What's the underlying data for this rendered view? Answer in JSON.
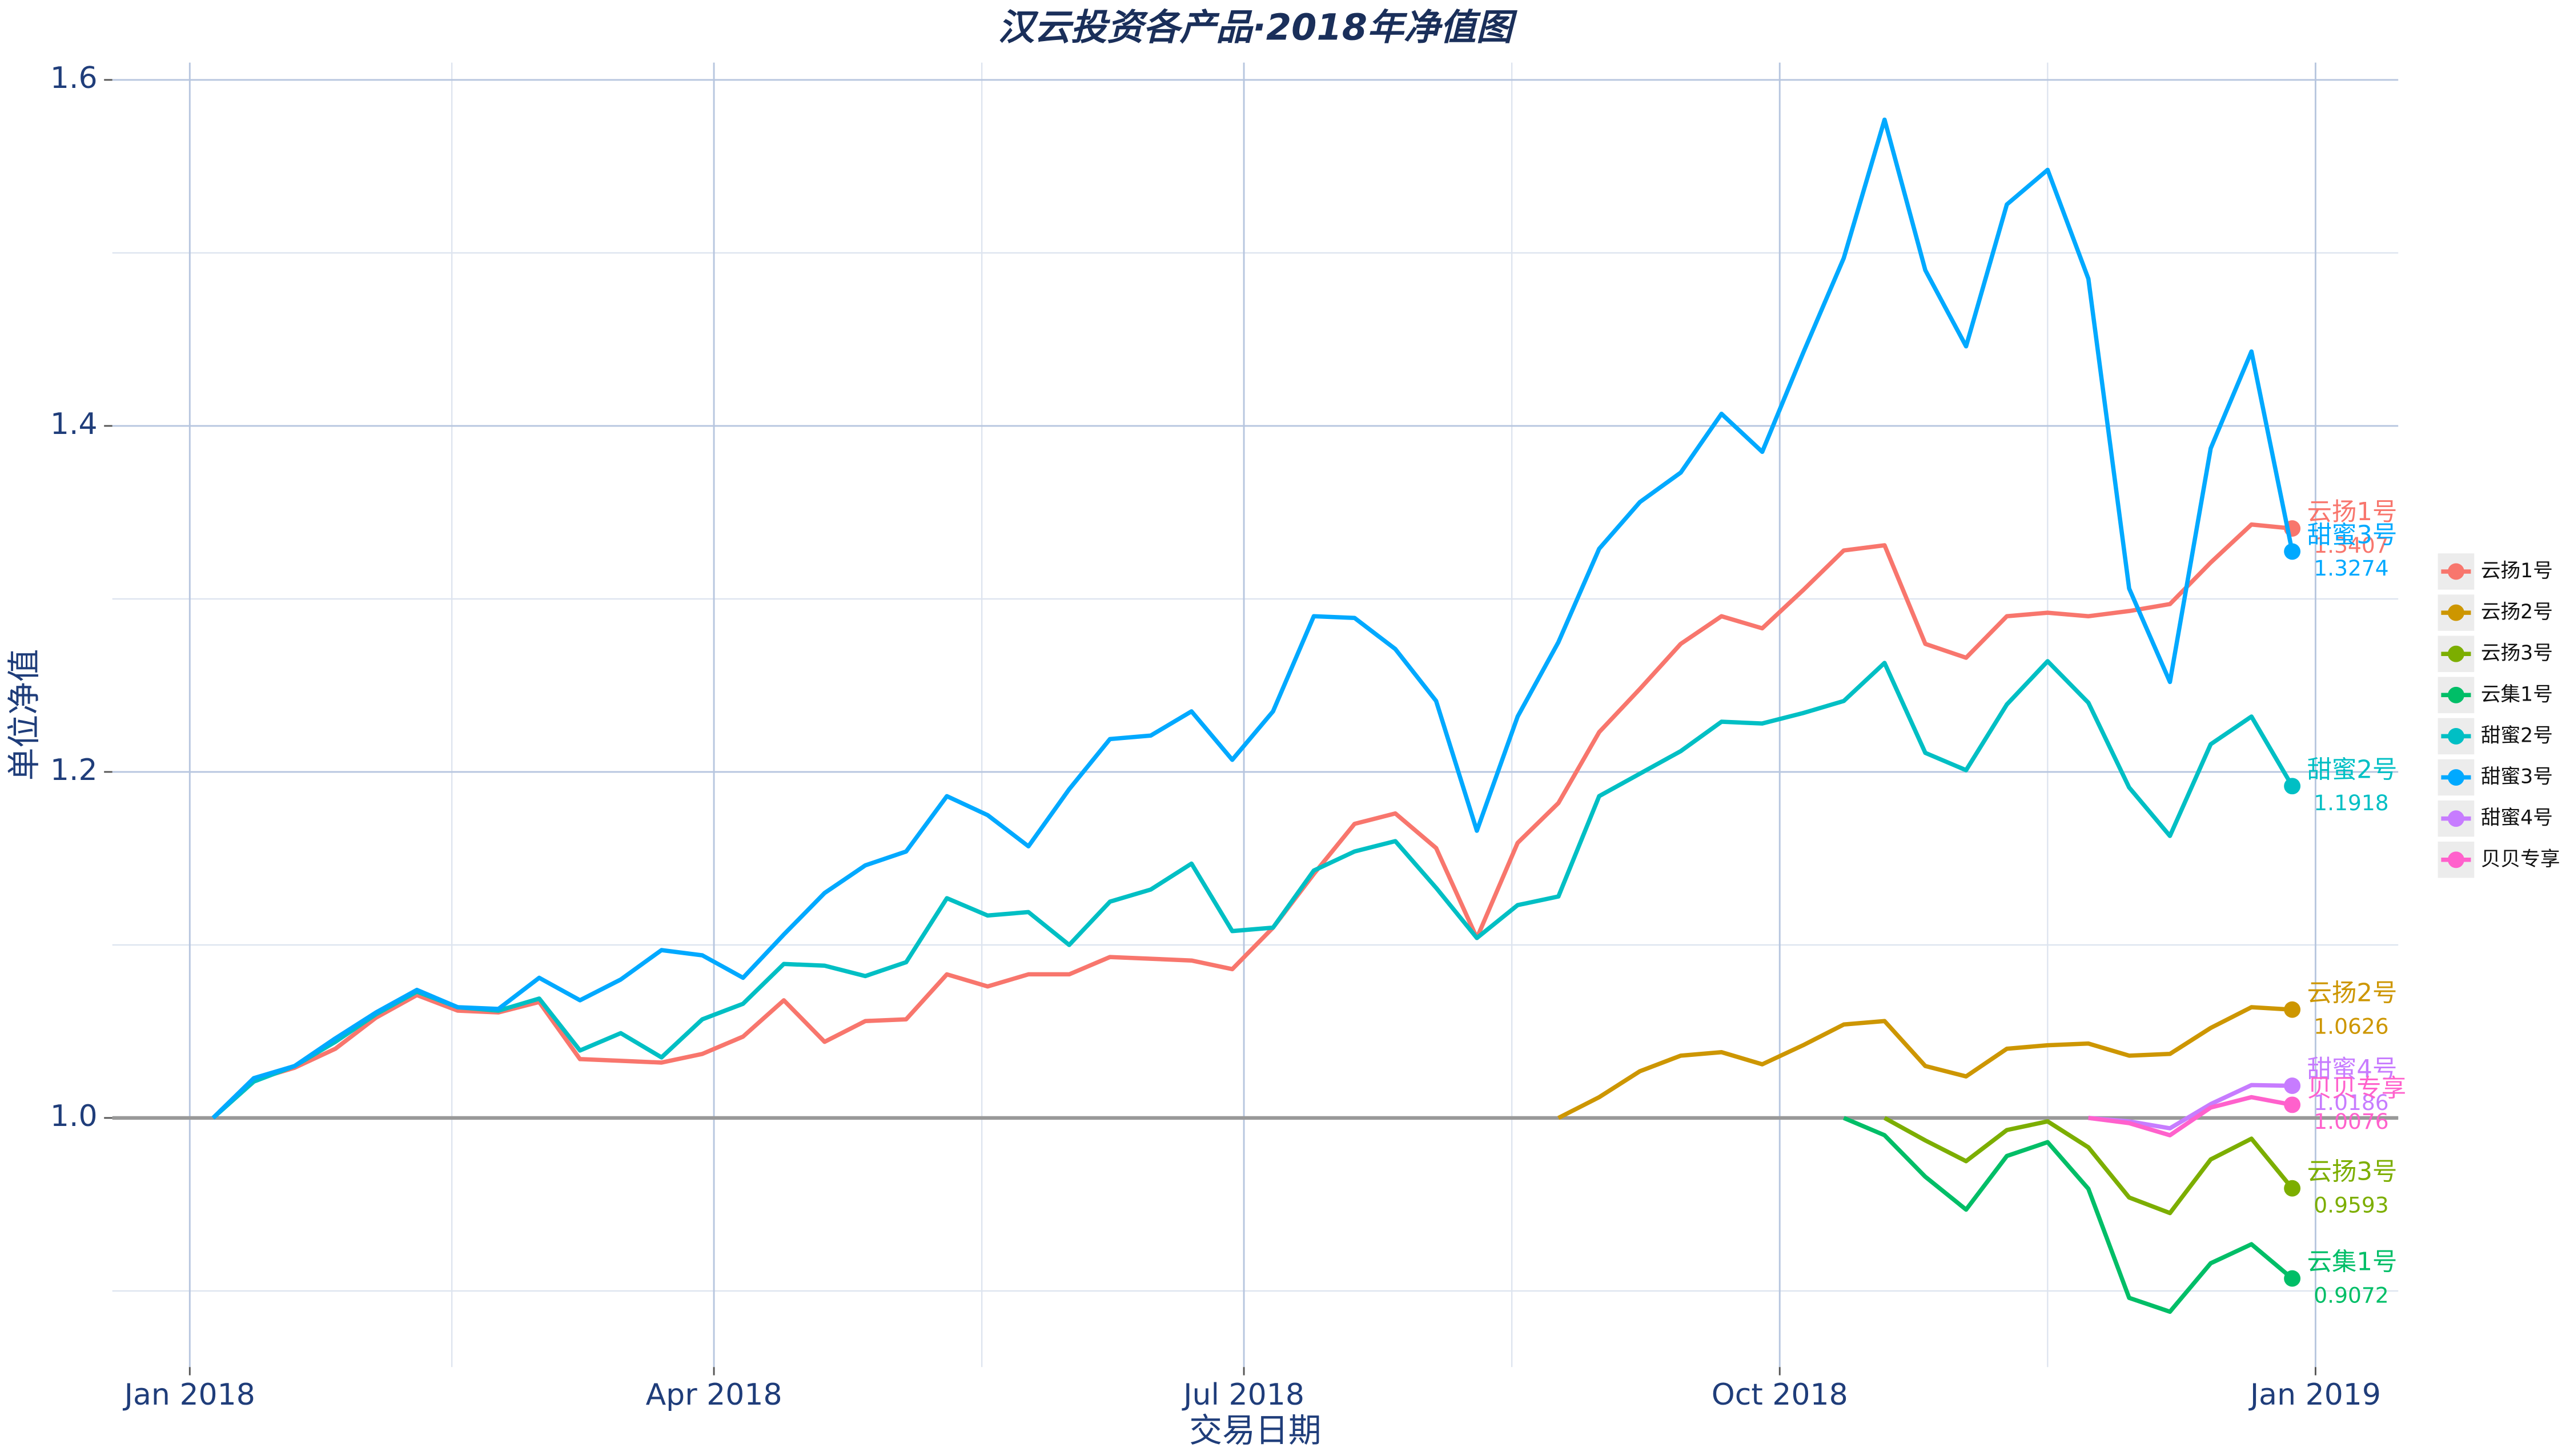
{
  "chart_data": {
    "type": "line",
    "title": "汉云投资各产品·2018年净值图",
    "x_label": "交易日期",
    "y_label": "单位净值",
    "x": [
      4,
      11,
      18,
      25,
      32,
      39,
      46,
      53,
      60,
      67,
      74,
      81,
      88,
      95,
      102,
      109,
      116,
      123,
      130,
      137,
      144,
      151,
      158,
      165,
      172,
      179,
      186,
      193,
      200,
      207,
      214,
      221,
      228,
      235,
      242,
      249,
      256,
      263,
      270,
      277,
      284,
      291,
      298,
      305,
      312,
      319,
      326,
      333,
      340,
      347,
      354,
      361
    ],
    "xlim": [
      -13.3,
      379.2
    ],
    "xticks": [
      {
        "value": 0,
        "label": "Jan 2018"
      },
      {
        "value": 90,
        "label": "Apr 2018"
      },
      {
        "value": 181,
        "label": "Jul 2018"
      },
      {
        "value": 273,
        "label": "Oct 2018"
      },
      {
        "value": 365,
        "label": "Jan 2019"
      }
    ],
    "minor_xticks": [
      45,
      136,
      227,
      319
    ],
    "ylim": [
      0.856,
      1.61
    ],
    "yticks": [
      {
        "value": 1,
        "label": "1.0"
      },
      1.2,
      1.4,
      1.6
    ],
    "minor_yticks": [
      0.9,
      1.1,
      1.3,
      1.5
    ],
    "hline": 1,
    "grid": true,
    "legend": "right",
    "series": [
      {
        "name": "云扬1号",
        "color": "#f8766d",
        "values": [
          1.0,
          1.022,
          1.029,
          1.04,
          1.058,
          1.071,
          1.062,
          1.061,
          1.067,
          1.034,
          1.033,
          1.032,
          1.037,
          1.047,
          1.068,
          1.044,
          1.056,
          1.057,
          1.083,
          1.076,
          1.083,
          1.083,
          1.093,
          1.092,
          1.091,
          1.086,
          1.11,
          1.141,
          1.17,
          1.176,
          1.156,
          1.104,
          1.159,
          1.182,
          1.223,
          1.248,
          1.274,
          1.29,
          1.283,
          1.305,
          1.328,
          1.331,
          1.274,
          1.266,
          1.29,
          1.292,
          1.29,
          1.293,
          1.297,
          1.321,
          1.343,
          1.3407
        ]
      },
      {
        "name": "云扬2号",
        "color": "#cd9600",
        "values": [
          null,
          null,
          null,
          null,
          null,
          null,
          null,
          null,
          null,
          null,
          null,
          null,
          null,
          null,
          null,
          null,
          null,
          null,
          null,
          null,
          null,
          null,
          null,
          null,
          null,
          null,
          null,
          null,
          null,
          null,
          null,
          null,
          null,
          1.0,
          1.012,
          1.027,
          1.036,
          1.038,
          1.031,
          1.042,
          1.054,
          1.056,
          1.03,
          1.024,
          1.04,
          1.042,
          1.043,
          1.036,
          1.037,
          1.052,
          1.064,
          1.0626
        ]
      },
      {
        "name": "云扬3号",
        "color": "#7cae00",
        "values": [
          null,
          null,
          null,
          null,
          null,
          null,
          null,
          null,
          null,
          null,
          null,
          null,
          null,
          null,
          null,
          null,
          null,
          null,
          null,
          null,
          null,
          null,
          null,
          null,
          null,
          null,
          null,
          null,
          null,
          null,
          null,
          null,
          null,
          null,
          null,
          null,
          null,
          null,
          null,
          null,
          null,
          1.0,
          0.987,
          0.975,
          0.993,
          0.998,
          0.983,
          0.954,
          0.945,
          0.976,
          0.988,
          0.9593
        ]
      },
      {
        "name": "云集1号",
        "color": "#00be67",
        "values": [
          null,
          null,
          null,
          null,
          null,
          null,
          null,
          null,
          null,
          null,
          null,
          null,
          null,
          null,
          null,
          null,
          null,
          null,
          null,
          null,
          null,
          null,
          null,
          null,
          null,
          null,
          null,
          null,
          null,
          null,
          null,
          null,
          null,
          null,
          null,
          null,
          null,
          null,
          null,
          null,
          1.0,
          0.99,
          0.966,
          0.947,
          0.978,
          0.986,
          0.959,
          0.896,
          0.888,
          0.916,
          0.927,
          0.9072
        ]
      },
      {
        "name": "甜蜜2号",
        "color": "#00bfc4",
        "values": [
          1.0,
          1.021,
          1.03,
          1.044,
          1.06,
          1.073,
          1.064,
          1.062,
          1.069,
          1.039,
          1.049,
          1.035,
          1.057,
          1.066,
          1.089,
          1.088,
          1.082,
          1.09,
          1.127,
          1.117,
          1.119,
          1.1,
          1.125,
          1.132,
          1.147,
          1.108,
          1.11,
          1.143,
          1.154,
          1.16,
          1.133,
          1.104,
          1.123,
          1.128,
          1.186,
          1.199,
          1.212,
          1.229,
          1.228,
          1.234,
          1.241,
          1.263,
          1.211,
          1.201,
          1.239,
          1.264,
          1.24,
          1.191,
          1.163,
          1.216,
          1.232,
          1.1918
        ]
      },
      {
        "name": "甜蜜3号",
        "color": "#00a9ff",
        "values": [
          1.0,
          1.023,
          1.03,
          1.046,
          1.061,
          1.074,
          1.064,
          1.063,
          1.081,
          1.068,
          1.08,
          1.097,
          1.094,
          1.081,
          1.106,
          1.13,
          1.146,
          1.154,
          1.186,
          1.175,
          1.157,
          1.19,
          1.219,
          1.221,
          1.235,
          1.207,
          1.235,
          1.29,
          1.289,
          1.271,
          1.241,
          1.166,
          1.232,
          1.275,
          1.329,
          1.356,
          1.373,
          1.407,
          1.385,
          1.442,
          1.497,
          1.577,
          1.49,
          1.446,
          1.528,
          1.548,
          1.485,
          1.306,
          1.252,
          1.387,
          1.443,
          1.3274
        ]
      },
      {
        "name": "甜蜜4号",
        "color": "#c77cff",
        "values": [
          null,
          null,
          null,
          null,
          null,
          null,
          null,
          null,
          null,
          null,
          null,
          null,
          null,
          null,
          null,
          null,
          null,
          null,
          null,
          null,
          null,
          null,
          null,
          null,
          null,
          null,
          null,
          null,
          null,
          null,
          null,
          null,
          null,
          null,
          null,
          null,
          null,
          null,
          null,
          null,
          null,
          null,
          null,
          null,
          null,
          null,
          1.0,
          0.998,
          0.994,
          1.008,
          1.019,
          1.0186
        ]
      },
      {
        "name": "贝贝专享",
        "color": "#ff61cc",
        "values": [
          null,
          null,
          null,
          null,
          null,
          null,
          null,
          null,
          null,
          null,
          null,
          null,
          null,
          null,
          null,
          null,
          null,
          null,
          null,
          null,
          null,
          null,
          null,
          null,
          null,
          null,
          null,
          null,
          null,
          null,
          null,
          null,
          null,
          null,
          null,
          null,
          null,
          null,
          null,
          null,
          null,
          null,
          null,
          null,
          null,
          null,
          1.0,
          0.997,
          0.99,
          1.006,
          1.012,
          1.0076
        ]
      }
    ]
  }
}
